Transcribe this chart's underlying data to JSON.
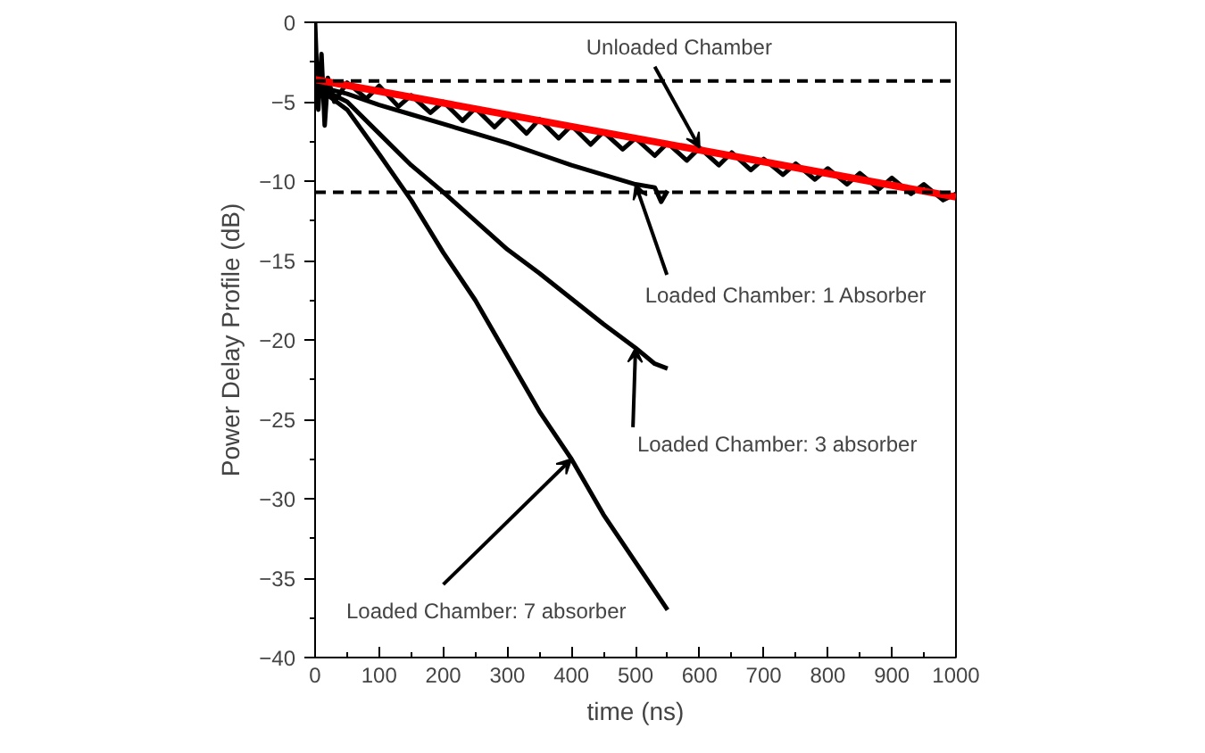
{
  "chart_data": {
    "type": "line",
    "xlabel": "time (ns)",
    "ylabel": "Power Delay Profile (dB)",
    "xlim": [
      0,
      1000
    ],
    "ylim": [
      -40,
      0
    ],
    "xticks": [
      0,
      100,
      200,
      300,
      400,
      500,
      600,
      700,
      800,
      900,
      1000
    ],
    "yticks": [
      -40,
      -35,
      -30,
      -25,
      -20,
      -15,
      -10,
      -5,
      0
    ],
    "grid": false,
    "marker": "none",
    "line_style": "solid",
    "series": [
      {
        "color": "#000000",
        "x": [
          0,
          5,
          10,
          15,
          20,
          30,
          50,
          80,
          100,
          130,
          150,
          180,
          200,
          230,
          250,
          280,
          300,
          330,
          350,
          380,
          400,
          430,
          450,
          480,
          500,
          530,
          550,
          580,
          600,
          630,
          650,
          680,
          700,
          730,
          750,
          780,
          800,
          830,
          850,
          880,
          900,
          930,
          950,
          980,
          1000
        ],
        "values": [
          0,
          -5.5,
          -2,
          -6.5,
          -3.5,
          -5,
          -3.8,
          -4.8,
          -4,
          -5.3,
          -4.6,
          -5.7,
          -5,
          -6.2,
          -5.4,
          -6.6,
          -5.8,
          -7,
          -6.1,
          -7.3,
          -6.5,
          -7.7,
          -6.9,
          -8,
          -7.3,
          -8.4,
          -7.6,
          -8.7,
          -7.9,
          -9,
          -8.2,
          -9.3,
          -8.6,
          -9.6,
          -8.9,
          -9.9,
          -9.2,
          -10.2,
          -9.5,
          -10.5,
          -9.8,
          -10.8,
          -10.2,
          -11.2,
          -10.8
        ]
      },
      {
        "color": "#000000",
        "x": [
          0,
          50,
          100,
          150,
          200,
          250,
          300,
          350,
          400,
          450,
          500,
          530,
          540,
          550
        ],
        "values": [
          -4,
          -4.5,
          -5.2,
          -5.8,
          -6.4,
          -7,
          -7.6,
          -8.3,
          -9,
          -9.6,
          -10.2,
          -10.4,
          -11.3,
          -10.6
        ]
      },
      {
        "color": "#000000",
        "x": [
          0,
          50,
          100,
          150,
          200,
          250,
          300,
          350,
          400,
          450,
          500,
          530,
          550
        ],
        "values": [
          -4,
          -5,
          -7,
          -9,
          -10.7,
          -12.5,
          -14.3,
          -15.8,
          -17.4,
          -19,
          -20.5,
          -21.5,
          -21.8
        ]
      },
      {
        "color": "#000000",
        "x": [
          0,
          50,
          100,
          150,
          200,
          250,
          300,
          350,
          400,
          450,
          500,
          550
        ],
        "values": [
          -4,
          -5.5,
          -8.3,
          -11.2,
          -14.5,
          -17.5,
          -21,
          -24.5,
          -27.5,
          -31,
          -34,
          -37
        ]
      },
      {
        "color": "#ff0000",
        "x": [
          0,
          1000
        ],
        "values": [
          -3.6,
          -11
        ]
      }
    ],
    "ref_lines": [
      {
        "axis": "y",
        "value": -3.7,
        "color": "#000000",
        "line_style": "dashed"
      },
      {
        "axis": "y",
        "value": -10.7,
        "color": "#000000",
        "line_style": "dashed"
      }
    ],
    "annotations": [
      {
        "text": "Unloaded Chamber",
        "x": 600,
        "y": -7.9
      },
      {
        "text": "Loaded Chamber: 1 Absorber",
        "x": 500,
        "y": -10.2
      },
      {
        "text": "Loaded Chamber: 3 absorber",
        "x": 500,
        "y": -20.5
      },
      {
        "text": "Loaded Chamber: 7 absorber",
        "x": 400,
        "y": -27.5
      }
    ]
  }
}
